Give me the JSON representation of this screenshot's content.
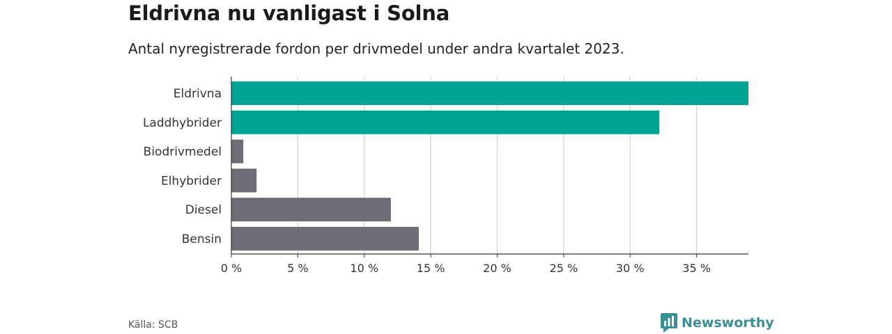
{
  "title": "Eldrivna nu vanligast i Solna",
  "subtitle": "Antal nyregistrerade fordon per drivmedel under andra kvartalet 2023.",
  "source": "Källa: SCB",
  "brand": {
    "name": "Newsworthy",
    "icon": "newsworthy-logo-icon",
    "color": "#3a8f95"
  },
  "colors": {
    "highlight": "#00a396",
    "default": "#6e6d75",
    "grid": "#d9d9d9",
    "axis": "#333333"
  },
  "chart_data": {
    "type": "bar",
    "orientation": "horizontal",
    "title": "Eldrivna nu vanligast i Solna",
    "subtitle": "Antal nyregistrerade fordon per drivmedel under andra kvartalet 2023.",
    "categories": [
      "Eldrivna",
      "Laddhybrider",
      "Biodrivmedel",
      "Elhybrider",
      "Diesel",
      "Bensin"
    ],
    "values": [
      38.9,
      32.2,
      0.9,
      1.9,
      12.0,
      14.1
    ],
    "highlight": [
      true,
      true,
      false,
      false,
      false,
      false
    ],
    "xlim": [
      0,
      38.9
    ],
    "xticks": [
      0,
      5,
      10,
      15,
      20,
      25,
      30,
      35
    ],
    "tick_labels": [
      "0 %",
      "5 %",
      "10 %",
      "15 %",
      "20 %",
      "25 %",
      "30 %",
      "35 %"
    ],
    "xlabel": "",
    "ylabel": "",
    "grid": true
  }
}
